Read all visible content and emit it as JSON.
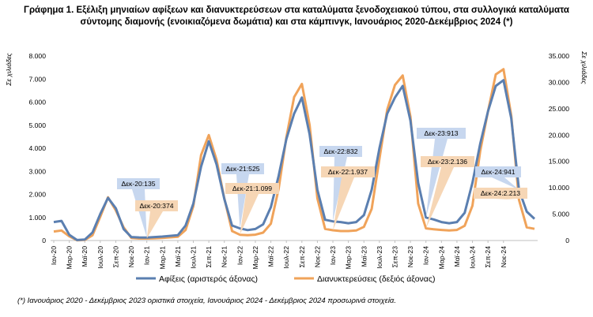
{
  "chart_data": {
    "type": "line",
    "title_line1": "Γράφημα 1. Εξέλιξη μηνιαίων αφίξεων και διανυκτερεύσεων στα καταλύματα ξενοδοχειακού τύπου, στα συλλογικά καταλύματα",
    "title_line2": "σύντομης διαμονής (ενοικιαζόμενα δωμάτια) και στα κάμπινγκ, Ιανουάριος 2020-Δεκέμβριος 2024 (*)",
    "left_axis_title": "Σε χιλιάδες",
    "right_axis_title": "Σε χιλιάδες",
    "left_ylim": [
      0,
      8000
    ],
    "right_ylim": [
      0,
      35000
    ],
    "left_ticks": [
      "0",
      "1.000",
      "2.000",
      "3.000",
      "4.000",
      "5.000",
      "6.000",
      "7.000",
      "8.000"
    ],
    "right_ticks": [
      "0",
      "5.000",
      "10.000",
      "15.000",
      "20.000",
      "25.000",
      "30.000",
      "35.000"
    ],
    "x_tick_labels": [
      "Ιαν-20",
      "Μαρ-20",
      "Μαϊ-20",
      "Ιουλ-20",
      "Σεπ-20",
      "Νοε-20",
      "Ιαν-21",
      "Μαρ-21",
      "Μαϊ-21",
      "Ιουλ-21",
      "Σεπ-21",
      "Νοε-21",
      "Ιαν-22",
      "Μαρ-22",
      "Μαϊ-22",
      "Ιουλ-22",
      "Σεπ-22",
      "Νοε-22",
      "Ιαν-23",
      "Μαρ-23",
      "Μαϊ-23",
      "Ιουλ-23",
      "Σεπ-23",
      "Νοε-23",
      "Ιαν-24",
      "Μαρ-24",
      "Μαϊ-24",
      "Ιουλ-24",
      "Σεπ-24",
      "Νοε-24"
    ],
    "series": [
      {
        "name": "Αφίξεις (αριστερός άξονας)",
        "axis": "left",
        "color": "#5b7fb0",
        "values": [
          800,
          850,
          250,
          20,
          40,
          350,
          1150,
          1850,
          1400,
          500,
          150,
          135,
          130,
          150,
          170,
          200,
          230,
          650,
          1600,
          3200,
          4300,
          3300,
          1800,
          650,
          525,
          450,
          500,
          700,
          1450,
          2800,
          4400,
          5500,
          6200,
          4600,
          2200,
          900,
          832,
          800,
          750,
          800,
          1100,
          2200,
          4000,
          5500,
          6200,
          6700,
          5200,
          2500,
          1000,
          913,
          800,
          750,
          800,
          1200,
          2500,
          4200,
          5600,
          6700,
          6950,
          5300,
          2200,
          1250,
          941
        ]
      },
      {
        "name": "Διανυκτερεύσεις (δεξιός άξονας)",
        "axis": "right",
        "color": "#f0a35a",
        "values": [
          1700,
          1900,
          800,
          50,
          100,
          1000,
          4500,
          8200,
          5700,
          2500,
          500,
          374,
          370,
          400,
          500,
          600,
          700,
          2000,
          6500,
          16200,
          20000,
          15300,
          8000,
          1800,
          1099,
          1000,
          1100,
          1500,
          3200,
          9800,
          19600,
          27200,
          29700,
          21900,
          8000,
          2200,
          1937,
          1800,
          1800,
          1900,
          2600,
          6000,
          15500,
          24800,
          29500,
          31300,
          23500,
          7000,
          2300,
          2136,
          2000,
          1900,
          2000,
          2800,
          6600,
          17000,
          24500,
          31500,
          32500,
          23700,
          7700,
          2500,
          2213
        ]
      }
    ],
    "callouts": [
      {
        "text": "Δεκ-20:135",
        "series": 0
      },
      {
        "text": "Δεκ-20:374",
        "series": 1
      },
      {
        "text": "Δεκ-21:525",
        "series": 0
      },
      {
        "text": "Δεκ-21:1.099",
        "series": 1
      },
      {
        "text": "Δεκ-22:832",
        "series": 0
      },
      {
        "text": "Δεκ-22:1.937",
        "series": 1
      },
      {
        "text": "Δεκ-23:913",
        "series": 0
      },
      {
        "text": "Δεκ-23:2.136",
        "series": 1
      },
      {
        "text": "Δεκ-24:941",
        "series": 0
      },
      {
        "text": "Δεκ-24:2.213",
        "series": 1
      }
    ],
    "legend_position": "bottom"
  },
  "footnote": "(*) Ιανουάριος 2020 - Δεκέμβριος 2023 οριστικά στοιχεία, Ιανουάριος 2024 - Δεκέμβριος 2024 προσωρινά στοιχεία."
}
